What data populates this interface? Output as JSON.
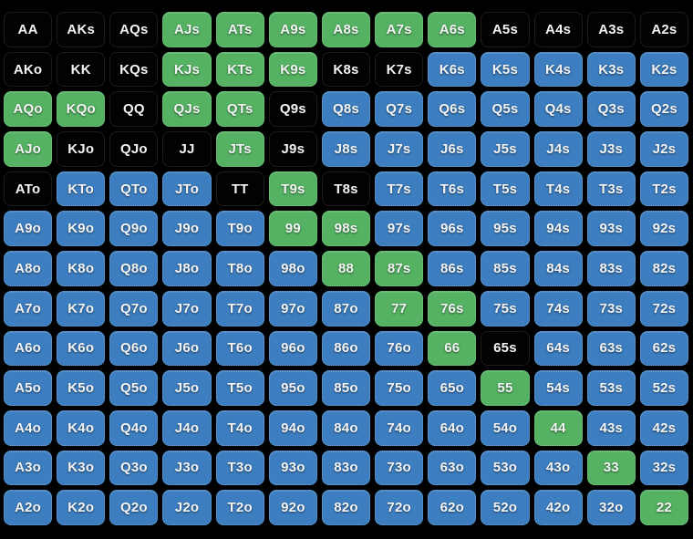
{
  "colors": {
    "green": "#55b263",
    "blue": "#3d7ec0",
    "black": "#020202",
    "background": "#000000",
    "text": "#f4f4f4"
  },
  "color_key": {
    "g": "green",
    "b": "blue",
    "k": "black"
  },
  "grid": {
    "rows": [
      [
        [
          "AA",
          "k"
        ],
        [
          "AKs",
          "k"
        ],
        [
          "AQs",
          "k"
        ],
        [
          "AJs",
          "g"
        ],
        [
          "ATs",
          "g"
        ],
        [
          "A9s",
          "g"
        ],
        [
          "A8s",
          "g"
        ],
        [
          "A7s",
          "g"
        ],
        [
          "A6s",
          "g"
        ],
        [
          "A5s",
          "k"
        ],
        [
          "A4s",
          "k"
        ],
        [
          "A3s",
          "k"
        ],
        [
          "A2s",
          "k"
        ]
      ],
      [
        [
          "AKo",
          "k"
        ],
        [
          "KK",
          "k"
        ],
        [
          "KQs",
          "k"
        ],
        [
          "KJs",
          "g"
        ],
        [
          "KTs",
          "g"
        ],
        [
          "K9s",
          "g"
        ],
        [
          "K8s",
          "k"
        ],
        [
          "K7s",
          "k"
        ],
        [
          "K6s",
          "b"
        ],
        [
          "K5s",
          "b"
        ],
        [
          "K4s",
          "b"
        ],
        [
          "K3s",
          "b"
        ],
        [
          "K2s",
          "b"
        ]
      ],
      [
        [
          "AQo",
          "g"
        ],
        [
          "KQo",
          "g"
        ],
        [
          "QQ",
          "k"
        ],
        [
          "QJs",
          "g"
        ],
        [
          "QTs",
          "g"
        ],
        [
          "Q9s",
          "k"
        ],
        [
          "Q8s",
          "b"
        ],
        [
          "Q7s",
          "b"
        ],
        [
          "Q6s",
          "b"
        ],
        [
          "Q5s",
          "b"
        ],
        [
          "Q4s",
          "b"
        ],
        [
          "Q3s",
          "b"
        ],
        [
          "Q2s",
          "b"
        ]
      ],
      [
        [
          "AJo",
          "g"
        ],
        [
          "KJo",
          "k"
        ],
        [
          "QJo",
          "k"
        ],
        [
          "JJ",
          "k"
        ],
        [
          "JTs",
          "g"
        ],
        [
          "J9s",
          "k"
        ],
        [
          "J8s",
          "b"
        ],
        [
          "J7s",
          "b"
        ],
        [
          "J6s",
          "b"
        ],
        [
          "J5s",
          "b"
        ],
        [
          "J4s",
          "b"
        ],
        [
          "J3s",
          "b"
        ],
        [
          "J2s",
          "b"
        ]
      ],
      [
        [
          "ATo",
          "k"
        ],
        [
          "KTo",
          "b"
        ],
        [
          "QTo",
          "b"
        ],
        [
          "JTo",
          "b"
        ],
        [
          "TT",
          "k"
        ],
        [
          "T9s",
          "g"
        ],
        [
          "T8s",
          "k"
        ],
        [
          "T7s",
          "b"
        ],
        [
          "T6s",
          "b"
        ],
        [
          "T5s",
          "b"
        ],
        [
          "T4s",
          "b"
        ],
        [
          "T3s",
          "b"
        ],
        [
          "T2s",
          "b"
        ]
      ],
      [
        [
          "A9o",
          "b"
        ],
        [
          "K9o",
          "b"
        ],
        [
          "Q9o",
          "b"
        ],
        [
          "J9o",
          "b"
        ],
        [
          "T9o",
          "b"
        ],
        [
          "99",
          "g"
        ],
        [
          "98s",
          "g"
        ],
        [
          "97s",
          "b"
        ],
        [
          "96s",
          "b"
        ],
        [
          "95s",
          "b"
        ],
        [
          "94s",
          "b"
        ],
        [
          "93s",
          "b"
        ],
        [
          "92s",
          "b"
        ]
      ],
      [
        [
          "A8o",
          "b"
        ],
        [
          "K8o",
          "b"
        ],
        [
          "Q8o",
          "b"
        ],
        [
          "J8o",
          "b"
        ],
        [
          "T8o",
          "b"
        ],
        [
          "98o",
          "b"
        ],
        [
          "88",
          "g"
        ],
        [
          "87s",
          "g"
        ],
        [
          "86s",
          "b"
        ],
        [
          "85s",
          "b"
        ],
        [
          "84s",
          "b"
        ],
        [
          "83s",
          "b"
        ],
        [
          "82s",
          "b"
        ]
      ],
      [
        [
          "A7o",
          "b"
        ],
        [
          "K7o",
          "b"
        ],
        [
          "Q7o",
          "b"
        ],
        [
          "J7o",
          "b"
        ],
        [
          "T7o",
          "b"
        ],
        [
          "97o",
          "b"
        ],
        [
          "87o",
          "b"
        ],
        [
          "77",
          "g"
        ],
        [
          "76s",
          "g"
        ],
        [
          "75s",
          "b"
        ],
        [
          "74s",
          "b"
        ],
        [
          "73s",
          "b"
        ],
        [
          "72s",
          "b"
        ]
      ],
      [
        [
          "A6o",
          "b"
        ],
        [
          "K6o",
          "b"
        ],
        [
          "Q6o",
          "b"
        ],
        [
          "J6o",
          "b"
        ],
        [
          "T6o",
          "b"
        ],
        [
          "96o",
          "b"
        ],
        [
          "86o",
          "b"
        ],
        [
          "76o",
          "b"
        ],
        [
          "66",
          "g"
        ],
        [
          "65s",
          "k"
        ],
        [
          "64s",
          "b"
        ],
        [
          "63s",
          "b"
        ],
        [
          "62s",
          "b"
        ]
      ],
      [
        [
          "A5o",
          "b"
        ],
        [
          "K5o",
          "b"
        ],
        [
          "Q5o",
          "b"
        ],
        [
          "J5o",
          "b"
        ],
        [
          "T5o",
          "b"
        ],
        [
          "95o",
          "b"
        ],
        [
          "85o",
          "b"
        ],
        [
          "75o",
          "b"
        ],
        [
          "65o",
          "b"
        ],
        [
          "55",
          "g"
        ],
        [
          "54s",
          "b"
        ],
        [
          "53s",
          "b"
        ],
        [
          "52s",
          "b"
        ]
      ],
      [
        [
          "A4o",
          "b"
        ],
        [
          "K4o",
          "b"
        ],
        [
          "Q4o",
          "b"
        ],
        [
          "J4o",
          "b"
        ],
        [
          "T4o",
          "b"
        ],
        [
          "94o",
          "b"
        ],
        [
          "84o",
          "b"
        ],
        [
          "74o",
          "b"
        ],
        [
          "64o",
          "b"
        ],
        [
          "54o",
          "b"
        ],
        [
          "44",
          "g"
        ],
        [
          "43s",
          "b"
        ],
        [
          "42s",
          "b"
        ]
      ],
      [
        [
          "A3o",
          "b"
        ],
        [
          "K3o",
          "b"
        ],
        [
          "Q3o",
          "b"
        ],
        [
          "J3o",
          "b"
        ],
        [
          "T3o",
          "b"
        ],
        [
          "93o",
          "b"
        ],
        [
          "83o",
          "b"
        ],
        [
          "73o",
          "b"
        ],
        [
          "63o",
          "b"
        ],
        [
          "53o",
          "b"
        ],
        [
          "43o",
          "b"
        ],
        [
          "33",
          "g"
        ],
        [
          "32s",
          "b"
        ]
      ],
      [
        [
          "A2o",
          "b"
        ],
        [
          "K2o",
          "b"
        ],
        [
          "Q2o",
          "b"
        ],
        [
          "J2o",
          "b"
        ],
        [
          "T2o",
          "b"
        ],
        [
          "92o",
          "b"
        ],
        [
          "82o",
          "b"
        ],
        [
          "72o",
          "b"
        ],
        [
          "62o",
          "b"
        ],
        [
          "52o",
          "b"
        ],
        [
          "42o",
          "b"
        ],
        [
          "32o",
          "b"
        ],
        [
          "22",
          "g"
        ]
      ]
    ]
  }
}
